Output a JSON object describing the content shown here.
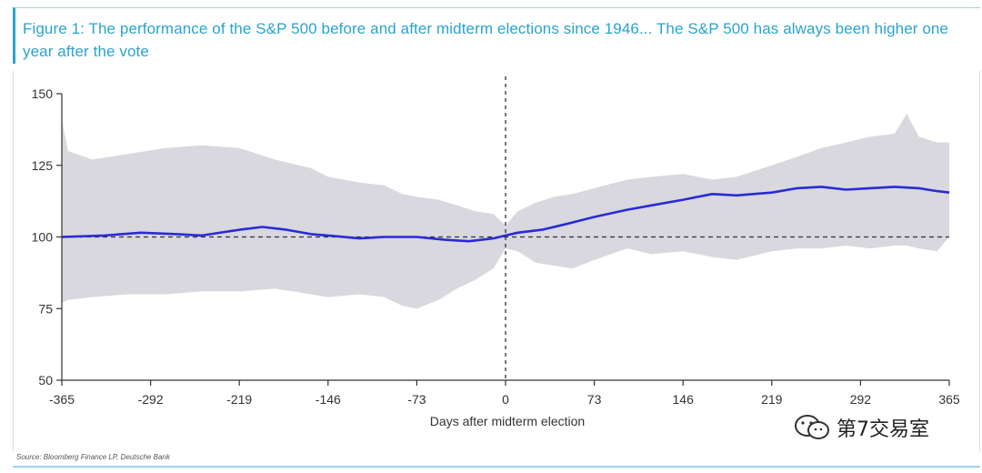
{
  "title": "Figure 1: The performance of the S&P 500 before and after midterm elections since 1946... The S&P 500 has always been higher one year after the vote",
  "source": "Source: Bloomberg Finance LP, Deutsche Bank",
  "watermark": {
    "text": "第7交易室",
    "icon": "wechat-icon"
  },
  "colors": {
    "title": "#2aa3cf",
    "line": "#2a2ad8",
    "band": "#d8d8de",
    "axis": "#333333"
  },
  "chart_data": {
    "type": "area",
    "xlabel": "Days after midterm election",
    "ylabel": "",
    "xlim": [
      -365,
      365
    ],
    "ylim": [
      50,
      150
    ],
    "xticks": [
      -365,
      -292,
      -219,
      -146,
      -73,
      0,
      73,
      146,
      219,
      292,
      365
    ],
    "yticks": [
      50,
      75,
      100,
      125,
      150
    ],
    "reference_lines": {
      "horizontal_y": 100,
      "vertical_x": 0
    },
    "legend": "none",
    "grid": false,
    "series": [
      {
        "kind": "line",
        "x": [
          -365,
          -330,
          -300,
          -270,
          -250,
          -219,
          -200,
          -180,
          -160,
          -146,
          -120,
          -100,
          -73,
          -50,
          -30,
          -10,
          0,
          10,
          30,
          50,
          73,
          100,
          120,
          146,
          170,
          190,
          219,
          240,
          260,
          280,
          300,
          320,
          340,
          355,
          365
        ],
        "values": [
          100,
          100.5,
          101.5,
          101,
          100.5,
          102.5,
          103.5,
          102.5,
          101,
          100.5,
          99.5,
          100,
          100,
          99,
          98.5,
          99.5,
          100.5,
          101.5,
          102.5,
          104.5,
          107,
          109.5,
          111,
          113,
          115,
          114.5,
          115.5,
          117,
          117.5,
          116.5,
          117,
          117.5,
          117,
          116,
          115.5
        ]
      },
      {
        "kind": "band",
        "x": [
          -365,
          -360,
          -340,
          -310,
          -280,
          -250,
          -219,
          -190,
          -160,
          -146,
          -120,
          -100,
          -85,
          -73,
          -55,
          -40,
          -25,
          -10,
          0,
          10,
          25,
          40,
          55,
          73,
          100,
          120,
          146,
          170,
          190,
          219,
          240,
          260,
          280,
          300,
          320,
          330,
          340,
          355,
          365
        ],
        "upper": [
          141,
          130,
          127,
          129,
          131,
          132,
          131,
          127,
          124,
          121,
          119,
          118,
          115,
          114,
          113,
          111,
          109,
          108,
          104,
          109,
          112,
          114,
          115,
          117,
          120,
          121,
          122,
          120,
          121,
          125,
          128,
          131,
          133,
          135,
          136,
          143,
          135,
          133,
          133
        ],
        "lower": [
          77,
          78,
          79,
          80,
          80,
          81,
          81,
          82,
          80,
          79,
          80,
          79,
          76,
          75,
          78,
          82,
          85,
          89,
          96,
          95,
          91,
          90,
          89,
          92,
          96,
          94,
          95,
          93,
          92,
          95,
          96,
          96,
          97,
          96,
          97,
          97,
          96,
          95,
          100
        ]
      }
    ]
  }
}
